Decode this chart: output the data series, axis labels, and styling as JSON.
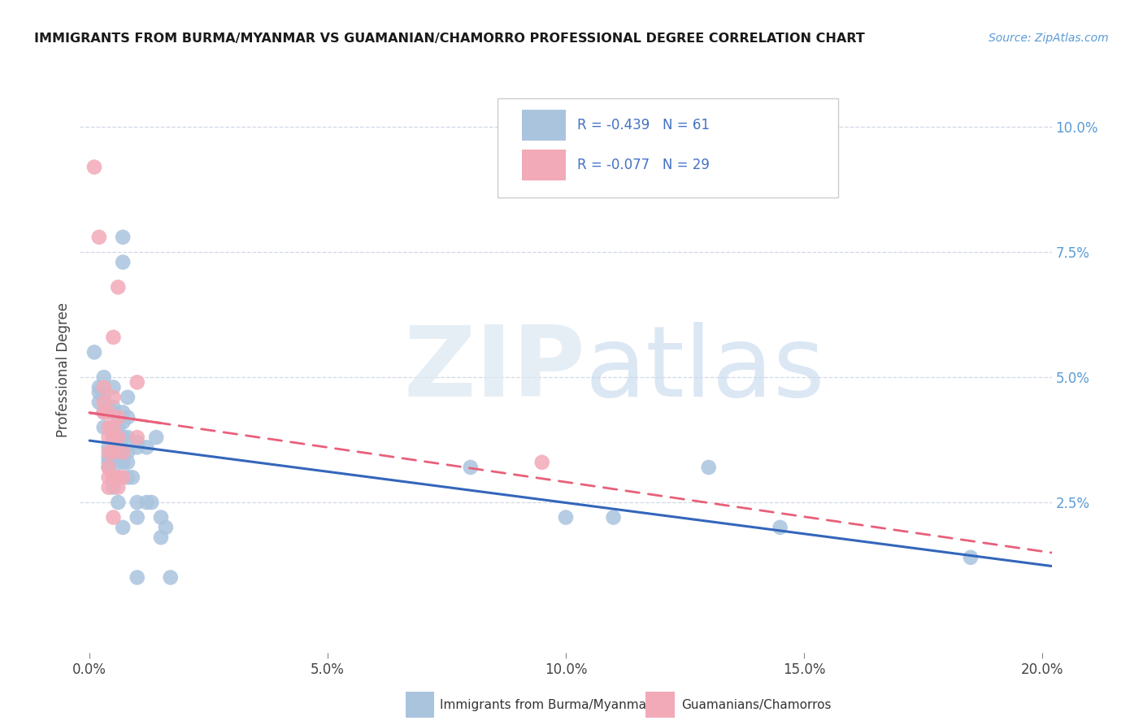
{
  "title": "IMMIGRANTS FROM BURMA/MYANMAR VS GUAMANIAN/CHAMORRO PROFESSIONAL DEGREE CORRELATION CHART",
  "source": "Source: ZipAtlas.com",
  "ylabel": "Professional Degree",
  "xlabel_ticks": [
    "0.0%",
    "",
    "5.0%",
    "",
    "10.0%",
    "",
    "15.0%",
    "",
    "20.0%"
  ],
  "xlabel_vals": [
    0.0,
    0.025,
    0.05,
    0.075,
    0.1,
    0.125,
    0.15,
    0.175,
    0.2
  ],
  "ylabel_ticks": [
    "10.0%",
    "7.5%",
    "5.0%",
    "2.5%",
    ""
  ],
  "ylabel_vals": [
    0.1,
    0.075,
    0.05,
    0.025,
    0.0
  ],
  "xlim": [
    -0.002,
    0.202
  ],
  "ylim": [
    -0.005,
    0.108
  ],
  "blue_R": -0.439,
  "blue_N": 61,
  "pink_R": -0.077,
  "pink_N": 29,
  "blue_color": "#aac4de",
  "pink_color": "#f2aab8",
  "blue_line_color": "#3366bb",
  "pink_line_color": "#e8607a",
  "legend_text_color": "#4472c4",
  "grid_color": "#d0d8e4",
  "legend_label_blue": "Immigrants from Burma/Myanmar",
  "legend_label_pink": "Guamanians/Chamorros",
  "blue_points": [
    [
      0.001,
      0.055
    ],
    [
      0.002,
      0.048
    ],
    [
      0.002,
      0.047
    ],
    [
      0.002,
      0.045
    ],
    [
      0.003,
      0.05
    ],
    [
      0.003,
      0.046
    ],
    [
      0.003,
      0.043
    ],
    [
      0.003,
      0.04
    ],
    [
      0.004,
      0.036
    ],
    [
      0.004,
      0.034
    ],
    [
      0.004,
      0.033
    ],
    [
      0.004,
      0.032
    ],
    [
      0.005,
      0.048
    ],
    [
      0.005,
      0.044
    ],
    [
      0.005,
      0.043
    ],
    [
      0.005,
      0.038
    ],
    [
      0.005,
      0.037
    ],
    [
      0.005,
      0.035
    ],
    [
      0.005,
      0.03
    ],
    [
      0.005,
      0.028
    ],
    [
      0.006,
      0.042
    ],
    [
      0.006,
      0.04
    ],
    [
      0.006,
      0.038
    ],
    [
      0.006,
      0.035
    ],
    [
      0.006,
      0.033
    ],
    [
      0.006,
      0.03
    ],
    [
      0.006,
      0.025
    ],
    [
      0.007,
      0.078
    ],
    [
      0.007,
      0.073
    ],
    [
      0.007,
      0.043
    ],
    [
      0.007,
      0.041
    ],
    [
      0.007,
      0.038
    ],
    [
      0.007,
      0.035
    ],
    [
      0.007,
      0.033
    ],
    [
      0.007,
      0.02
    ],
    [
      0.008,
      0.046
    ],
    [
      0.008,
      0.042
    ],
    [
      0.008,
      0.038
    ],
    [
      0.008,
      0.035
    ],
    [
      0.008,
      0.033
    ],
    [
      0.008,
      0.03
    ],
    [
      0.009,
      0.03
    ],
    [
      0.01,
      0.037
    ],
    [
      0.01,
      0.036
    ],
    [
      0.01,
      0.025
    ],
    [
      0.01,
      0.022
    ],
    [
      0.01,
      0.01
    ],
    [
      0.012,
      0.036
    ],
    [
      0.012,
      0.025
    ],
    [
      0.013,
      0.025
    ],
    [
      0.014,
      0.038
    ],
    [
      0.015,
      0.022
    ],
    [
      0.015,
      0.018
    ],
    [
      0.016,
      0.02
    ],
    [
      0.017,
      0.01
    ],
    [
      0.08,
      0.032
    ],
    [
      0.1,
      0.022
    ],
    [
      0.11,
      0.022
    ],
    [
      0.13,
      0.032
    ],
    [
      0.145,
      0.02
    ],
    [
      0.185,
      0.014
    ]
  ],
  "pink_points": [
    [
      0.001,
      0.092
    ],
    [
      0.002,
      0.078
    ],
    [
      0.003,
      0.048
    ],
    [
      0.003,
      0.045
    ],
    [
      0.003,
      0.043
    ],
    [
      0.004,
      0.043
    ],
    [
      0.004,
      0.04
    ],
    [
      0.004,
      0.038
    ],
    [
      0.004,
      0.035
    ],
    [
      0.004,
      0.032
    ],
    [
      0.004,
      0.03
    ],
    [
      0.004,
      0.028
    ],
    [
      0.005,
      0.058
    ],
    [
      0.005,
      0.046
    ],
    [
      0.005,
      0.04
    ],
    [
      0.005,
      0.038
    ],
    [
      0.005,
      0.035
    ],
    [
      0.005,
      0.03
    ],
    [
      0.005,
      0.022
    ],
    [
      0.006,
      0.068
    ],
    [
      0.006,
      0.042
    ],
    [
      0.006,
      0.038
    ],
    [
      0.006,
      0.03
    ],
    [
      0.006,
      0.028
    ],
    [
      0.007,
      0.035
    ],
    [
      0.007,
      0.03
    ],
    [
      0.01,
      0.049
    ],
    [
      0.01,
      0.038
    ],
    [
      0.095,
      0.033
    ]
  ]
}
